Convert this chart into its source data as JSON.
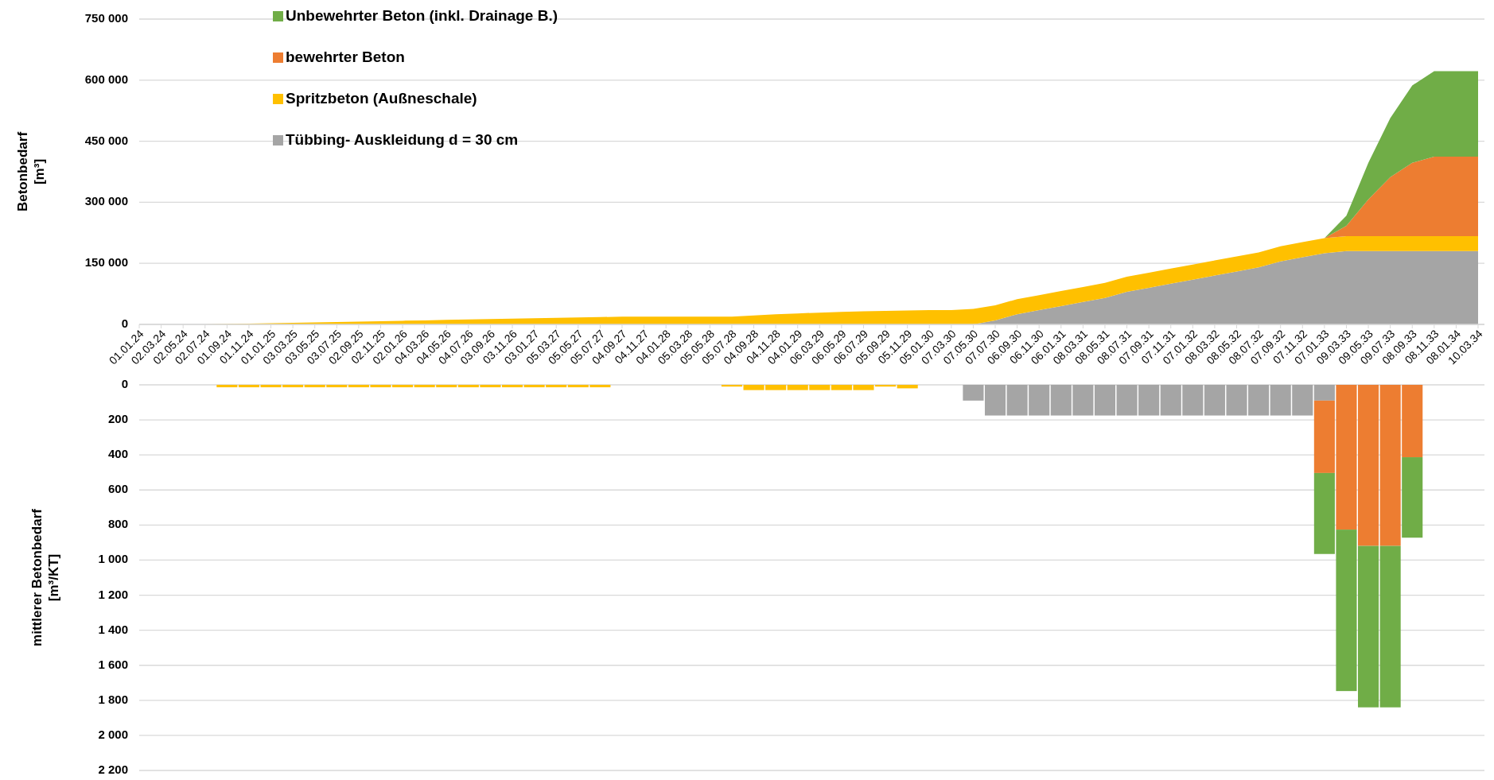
{
  "chart_data": [
    {
      "type": "area",
      "stacked": true,
      "ylabel": "Betonbedarf [m³]",
      "legend": "top left",
      "grid": "y",
      "categories": [
        "01.01.24",
        "02.03.24",
        "02.05.24",
        "02.07.24",
        "01.09.24",
        "01.11.24",
        "01.01.25",
        "03.03.25",
        "03.05.25",
        "03.07.25",
        "02.09.25",
        "02.11.25",
        "02.01.26",
        "04.03.26",
        "04.05.26",
        "04.07.26",
        "03.09.26",
        "03.11.26",
        "03.01.27",
        "05.03.27",
        "05.05.27",
        "05.07.27",
        "04.09.27",
        "04.11.27",
        "04.01.28",
        "05.03.28",
        "05.05.28",
        "05.07.28",
        "04.09.28",
        "04.11.28",
        "04.01.29",
        "06.03.29",
        "06.05.29",
        "06.07.29",
        "05.09.29",
        "05.11.29",
        "05.01.30",
        "07.03.30",
        "07.05.30",
        "07.07.30",
        "06.09.30",
        "06.11.30",
        "06.01.31",
        "08.03.31",
        "08.05.31",
        "08.07.31",
        "07.09.31",
        "07.11.31",
        "07.01.32",
        "08.03.32",
        "08.05.32",
        "08.07.32",
        "07.09.32",
        "07.11.32",
        "07.01.33",
        "09.03.33",
        "09.05.33",
        "09.07.33",
        "08.09.33",
        "08.11.33",
        "08.01.34",
        "10.03.34"
      ],
      "ylim": [
        0,
        750000
      ],
      "yticks": [
        0,
        {
          "value": 150000,
          "label": "150 000"
        },
        {
          "value": 300000,
          "label": "300 000"
        },
        {
          "value": 450000,
          "label": "450 000"
        },
        {
          "value": 600000,
          "label": "600 000"
        },
        {
          "value": 750000,
          "label": "750 000"
        }
      ],
      "series": [
        {
          "name": "Tübbing- Auskleidung d = 30 cm",
          "color": "#a5a5a5",
          "values": [
            0,
            0,
            0,
            0,
            0,
            0,
            0,
            0,
            0,
            0,
            0,
            0,
            0,
            0,
            0,
            0,
            0,
            0,
            0,
            0,
            0,
            0,
            0,
            0,
            0,
            0,
            0,
            0,
            0,
            0,
            0,
            0,
            0,
            0,
            0,
            0,
            0,
            0,
            0,
            10000,
            25000,
            35000,
            45000,
            55000,
            65000,
            80000,
            90000,
            100000,
            110000,
            120000,
            130000,
            140000,
            155000,
            165000,
            175000,
            180000,
            180000,
            180000,
            180000,
            180000,
            180000,
            180000
          ]
        },
        {
          "name": "Spritzbeton (Außneschale)",
          "color": "#ffc000",
          "values": [
            0,
            0,
            0,
            0,
            1000,
            2000,
            3000,
            4000,
            5000,
            6000,
            7000,
            8000,
            9000,
            10000,
            11000,
            12000,
            13000,
            14000,
            15000,
            16000,
            17000,
            18000,
            19000,
            19000,
            19000,
            19000,
            19000,
            19000,
            22000,
            25000,
            27000,
            29000,
            31000,
            32000,
            33000,
            34000,
            35000,
            35000,
            38000,
            37000,
            37000,
            37000,
            37000,
            37000,
            37000,
            37000,
            37000,
            37000,
            37000,
            37000,
            37000,
            37000,
            37000,
            37000,
            37000,
            37000,
            37000,
            37000,
            37000,
            37000,
            37000,
            37000
          ]
        },
        {
          "name": "bewehrter Beton",
          "color": "#ed7d31",
          "values": [
            0,
            0,
            0,
            0,
            0,
            0,
            0,
            0,
            0,
            0,
            0,
            0,
            0,
            0,
            0,
            0,
            0,
            0,
            0,
            0,
            0,
            0,
            0,
            0,
            0,
            0,
            0,
            0,
            0,
            0,
            0,
            0,
            0,
            0,
            0,
            0,
            0,
            0,
            0,
            0,
            0,
            0,
            0,
            0,
            0,
            0,
            0,
            0,
            0,
            0,
            0,
            0,
            0,
            0,
            0,
            25000,
            90000,
            145000,
            180000,
            195000,
            195000,
            195000
          ]
        },
        {
          "name": "Unbewehrter Beton (inkl. Drainage B.)",
          "color": "#70ad47",
          "values": [
            0,
            0,
            0,
            0,
            0,
            0,
            0,
            0,
            0,
            0,
            0,
            0,
            0,
            0,
            0,
            0,
            0,
            0,
            0,
            0,
            0,
            0,
            0,
            0,
            0,
            0,
            0,
            0,
            0,
            0,
            0,
            0,
            0,
            0,
            0,
            0,
            0,
            0,
            0,
            0,
            0,
            0,
            0,
            0,
            0,
            0,
            0,
            0,
            0,
            0,
            0,
            0,
            0,
            0,
            0,
            25000,
            90000,
            145000,
            190000,
            210000,
            210000,
            210000
          ]
        }
      ]
    },
    {
      "type": "bar",
      "stacked": true,
      "ylabel": "mittlerer Betonbedarf [m³/KT]",
      "grid": "y",
      "tick_labels": "y",
      "categories": [
        null,
        null,
        null,
        null,
        null,
        null,
        null,
        null,
        null,
        null,
        null,
        null,
        null,
        null,
        null,
        null,
        null,
        null,
        null,
        null,
        null,
        null,
        null,
        null,
        null,
        null,
        null,
        null,
        null,
        null,
        null,
        null,
        null,
        null,
        null,
        null,
        null,
        null,
        null,
        null,
        null,
        null,
        null,
        null,
        null,
        null,
        null,
        null,
        null,
        null,
        null,
        null,
        null,
        null,
        null,
        null,
        null,
        null,
        null,
        null,
        null,
        null
      ],
      "ylim": [
        2200,
        0
      ],
      "yticks": [
        0,
        200,
        400,
        600,
        800,
        {
          "value": 1000,
          "label": "1 000"
        },
        {
          "value": 1200,
          "label": "1 200"
        },
        {
          "value": 1400,
          "label": "1 400"
        },
        {
          "value": 1600,
          "label": "1 600"
        },
        {
          "value": 1800,
          "label": "1 800"
        },
        {
          "value": 2000,
          "label": "2 000"
        },
        {
          "value": 2200,
          "label": "2 200"
        }
      ],
      "series": [
        {
          "color": "#a5a5a5",
          "values": [
            0,
            0,
            0,
            0,
            0,
            0,
            0,
            0,
            0,
            0,
            0,
            0,
            0,
            0,
            0,
            0,
            0,
            0,
            0,
            0,
            0,
            0,
            0,
            0,
            0,
            0,
            0,
            0,
            0,
            0,
            0,
            0,
            0,
            0,
            0,
            0,
            0,
            0,
            90,
            175,
            175,
            175,
            175,
            175,
            175,
            175,
            175,
            175,
            175,
            175,
            175,
            175,
            175,
            175,
            90,
            0,
            0,
            0,
            0,
            0,
            0,
            0
          ]
        },
        {
          "color": "#ffc000",
          "values": [
            0,
            0,
            0,
            0,
            14,
            14,
            14,
            14,
            14,
            14,
            14,
            14,
            14,
            14,
            14,
            14,
            14,
            14,
            14,
            14,
            14,
            14,
            0,
            0,
            0,
            0,
            0,
            10,
            30,
            30,
            30,
            30,
            30,
            30,
            10,
            20,
            0,
            0,
            0,
            0,
            0,
            0,
            0,
            0,
            0,
            0,
            0,
            0,
            0,
            0,
            0,
            0,
            0,
            0,
            0,
            0,
            0,
            0,
            0,
            0,
            0,
            0
          ]
        },
        {
          "color": "#ed7d31",
          "values": [
            0,
            0,
            0,
            0,
            0,
            0,
            0,
            0,
            0,
            0,
            0,
            0,
            0,
            0,
            0,
            0,
            0,
            0,
            0,
            0,
            0,
            0,
            0,
            0,
            0,
            0,
            0,
            0,
            0,
            0,
            0,
            0,
            0,
            0,
            0,
            0,
            0,
            0,
            0,
            0,
            0,
            0,
            0,
            0,
            0,
            0,
            0,
            0,
            0,
            0,
            0,
            0,
            0,
            0,
            413,
            826,
            919,
            919,
            413,
            0,
            0,
            0
          ]
        },
        {
          "color": "#70ad47",
          "values": [
            0,
            0,
            0,
            0,
            0,
            0,
            0,
            0,
            0,
            0,
            0,
            0,
            0,
            0,
            0,
            0,
            0,
            0,
            0,
            0,
            0,
            0,
            0,
            0,
            0,
            0,
            0,
            0,
            0,
            0,
            0,
            0,
            0,
            0,
            0,
            0,
            0,
            0,
            0,
            0,
            0,
            0,
            0,
            0,
            0,
            0,
            0,
            0,
            0,
            0,
            0,
            0,
            0,
            0,
            462,
            921,
            921,
            921,
            459,
            0,
            0,
            0
          ]
        }
      ]
    }
  ]
}
